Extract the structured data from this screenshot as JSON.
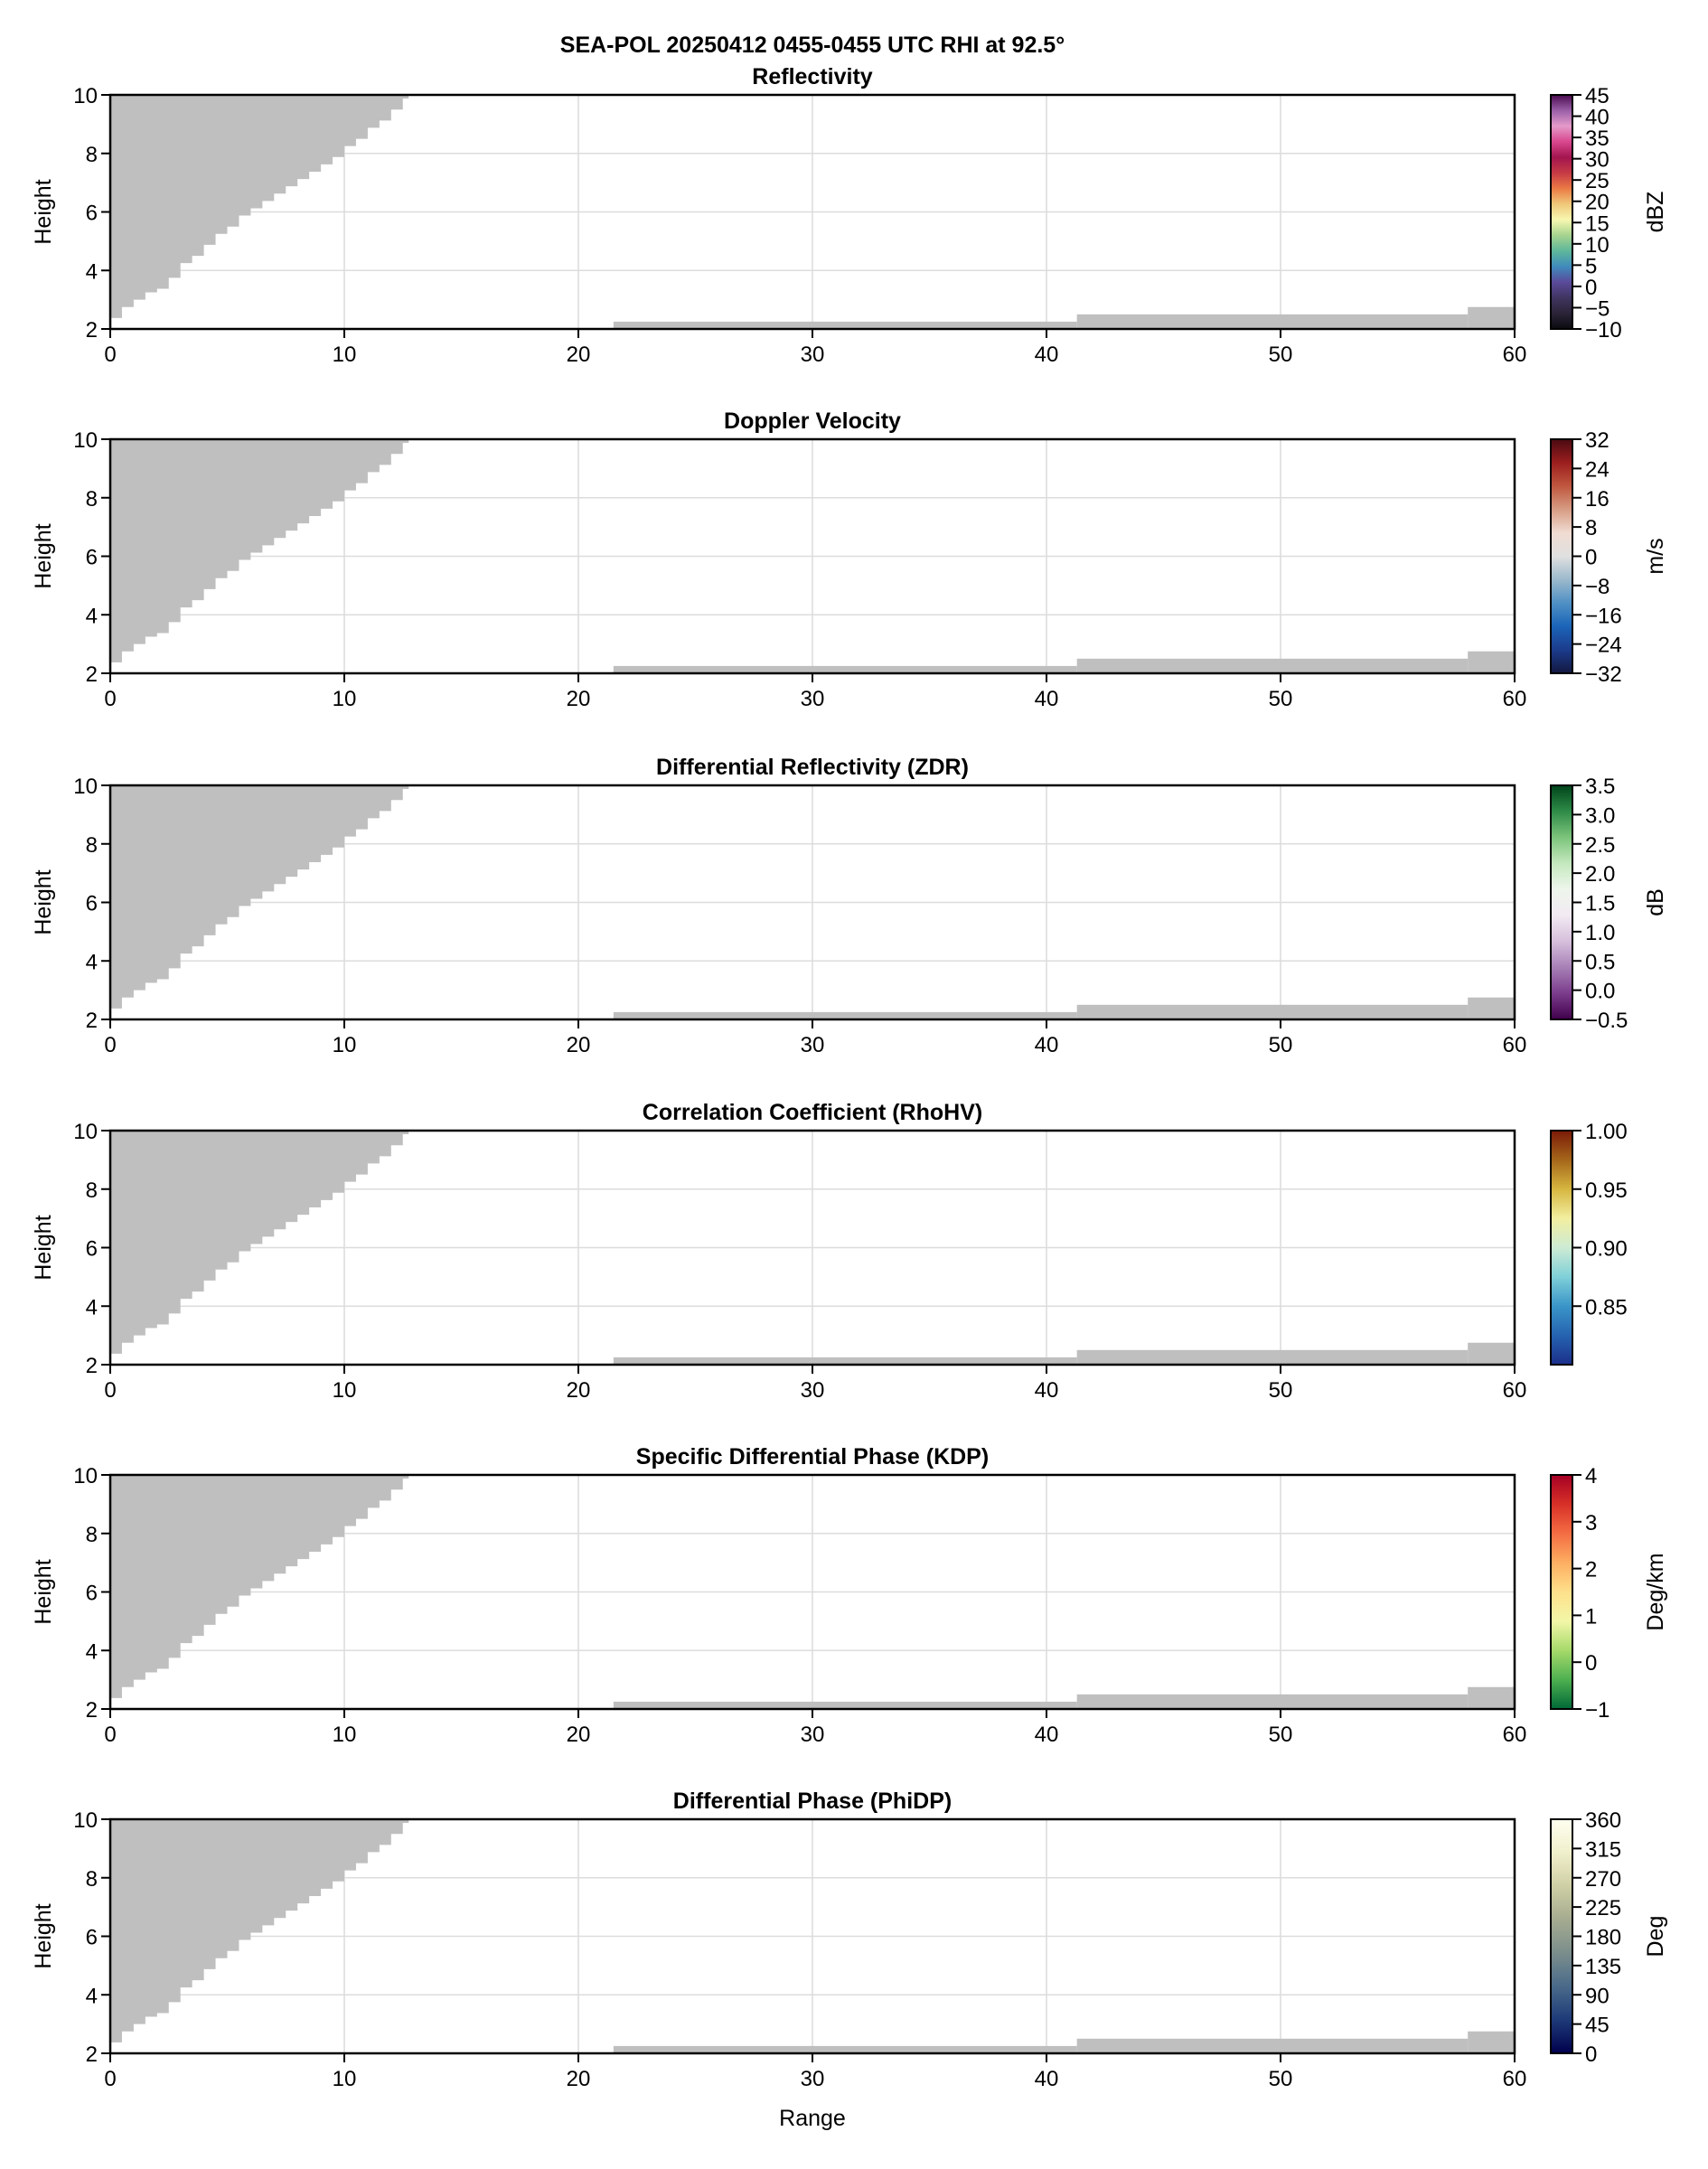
{
  "suptitle": "SEA-POL 20250412 0455-0455 UTC RHI at 92.5°",
  "xlabel": "Range",
  "chart_data": {
    "type": "heatmap",
    "xlim": [
      0,
      60
    ],
    "ylim": [
      2,
      10
    ],
    "xticks": [
      0,
      10,
      20,
      30,
      40,
      50,
      60
    ],
    "yticks": [
      2,
      4,
      6,
      8,
      10
    ],
    "ylabel": "Height",
    "grid": true,
    "mask_color": "#bfbfbf",
    "upper_mask_edge": [
      [
        0,
        2
      ],
      [
        0.5,
        2.75
      ],
      [
        0.9,
        3.0
      ],
      [
        1.5,
        3.25
      ],
      [
        2.2,
        3.5
      ],
      [
        2.7,
        4.0
      ],
      [
        5.7,
        6.0
      ],
      [
        9.7,
        8.0
      ],
      [
        12.75,
        10.0
      ]
    ],
    "lower_mask_blocks": [
      {
        "x0": 21.5,
        "x1": 41.3,
        "top": 2.25
      },
      {
        "x0": 41.3,
        "x1": 58.0,
        "top": 2.5
      },
      {
        "x0": 58.0,
        "x1": 60.0,
        "top": 2.75
      }
    ],
    "panels": [
      {
        "title": "Reflectivity",
        "cbar_label": "dBZ",
        "range": [
          -10,
          45
        ],
        "ticks": [
          -10,
          -5,
          0,
          5,
          10,
          15,
          20,
          25,
          30,
          35,
          40,
          45
        ],
        "tick_labels": [
          "−10",
          "−5",
          "0",
          "5",
          "10",
          "15",
          "20",
          "25",
          "30",
          "35",
          "40",
          "45"
        ],
        "colors": [
          "#0a0a0e",
          "#2b2438",
          "#3f3560",
          "#5a4a9a",
          "#3f8bbd",
          "#5fb79a",
          "#a6d38f",
          "#f7f7b0",
          "#f0c87a",
          "#ea7a45",
          "#c63a45",
          "#a3154f",
          "#d9478e",
          "#e49bc9",
          "#9a5fa8",
          "#4a0a4e"
        ]
      },
      {
        "title": "Doppler Velocity",
        "cbar_label": "m/s",
        "range": [
          -32,
          32
        ],
        "ticks": [
          -32,
          -24,
          -16,
          -8,
          0,
          8,
          16,
          24,
          32
        ],
        "tick_labels": [
          "−32",
          "−24",
          "−16",
          "−8",
          "0",
          "8",
          "16",
          "24",
          "32"
        ],
        "colors": [
          "#13183f",
          "#1c3b8c",
          "#1b64b8",
          "#4f90c4",
          "#9bb9cc",
          "#e0e0e0",
          "#f0dcd2",
          "#d79c84",
          "#c0573f",
          "#9c1e1e",
          "#4a0a12"
        ]
      },
      {
        "title": "Differential Reflectivity (ZDR)",
        "cbar_label": "dB",
        "range": [
          -0.5,
          3.5
        ],
        "ticks": [
          -0.5,
          0,
          0.5,
          1,
          1.5,
          2,
          2.5,
          3,
          3.5
        ],
        "tick_labels": [
          "−0.5",
          "0.0",
          "0.5",
          "1.0",
          "1.5",
          "2.0",
          "2.5",
          "3.0",
          "3.5"
        ],
        "colors": [
          "#40004b",
          "#7b3c8c",
          "#a780b6",
          "#d6bfdc",
          "#f2eaf2",
          "#eef6ec",
          "#c4e8be",
          "#7cc47c",
          "#2e8b47",
          "#00441b"
        ]
      },
      {
        "title": "Correlation Coefficient (RhoHV)",
        "cbar_label": "",
        "range": [
          0.8,
          1.0
        ],
        "ticks": [
          0.85,
          0.9,
          0.95,
          1.0
        ],
        "tick_labels": [
          "0.85",
          "0.90",
          "0.95",
          "1.00"
        ],
        "colors": [
          "#1c2f8a",
          "#2563b0",
          "#3a95c8",
          "#7fd0d8",
          "#cdebd4",
          "#f2eea0",
          "#d6b640",
          "#a5661a",
          "#7a1a08"
        ]
      },
      {
        "title": "Specific Differential Phase (KDP)",
        "cbar_label": "Deg/km",
        "range": [
          -1,
          4
        ],
        "ticks": [
          -1,
          0,
          1,
          2,
          3,
          4
        ],
        "tick_labels": [
          "−1",
          "0",
          "1",
          "2",
          "3",
          "4"
        ],
        "colors": [
          "#006837",
          "#4db050",
          "#a6d96a",
          "#f2f7a8",
          "#fee08b",
          "#fdae61",
          "#f46d43",
          "#d73027",
          "#a50026"
        ]
      },
      {
        "title": "Differential Phase (PhiDP)",
        "cbar_label": "Deg",
        "range": [
          0,
          360
        ],
        "ticks": [
          0,
          45,
          90,
          135,
          180,
          225,
          270,
          315,
          360
        ],
        "tick_labels": [
          "0",
          "45",
          "90",
          "135",
          "180",
          "225",
          "270",
          "315",
          "360"
        ],
        "colors": [
          "#00004c",
          "#1e3a78",
          "#4a6a8a",
          "#7b8e8c",
          "#a5ab90",
          "#cfcfa5",
          "#f0efcc",
          "#fffff0"
        ]
      }
    ]
  }
}
